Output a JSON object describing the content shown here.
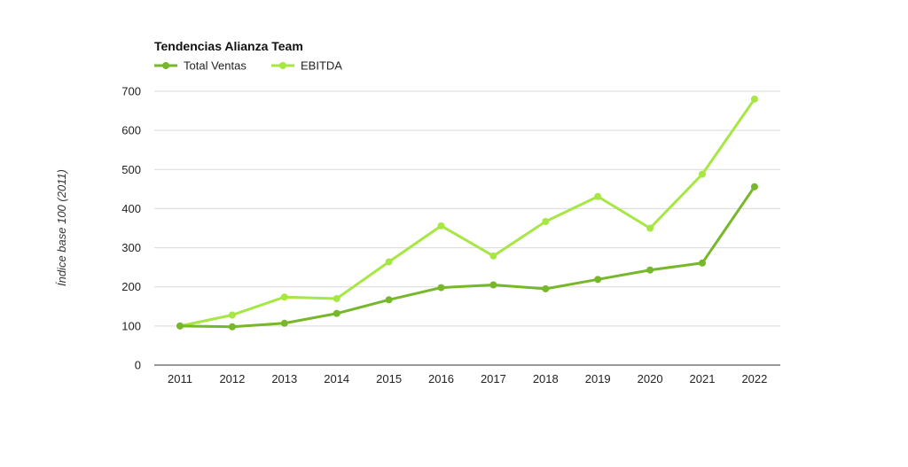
{
  "chart_data": {
    "type": "line",
    "title": "Tendencias Alianza Team",
    "xlabel": "",
    "ylabel": "Índice base 100 (2011)",
    "ylim": [
      0,
      700
    ],
    "yticks": [
      0,
      100,
      200,
      300,
      400,
      500,
      600,
      700
    ],
    "categories": [
      "2011",
      "2012",
      "2013",
      "2014",
      "2015",
      "2016",
      "2017",
      "2018",
      "2019",
      "2020",
      "2021",
      "2022"
    ],
    "series": [
      {
        "name": "Total Ventas",
        "color": "#76b82a",
        "values": [
          100,
          98,
          107,
          132,
          167,
          198,
          205,
          195,
          219,
          243,
          261,
          456
        ]
      },
      {
        "name": "EBITDA",
        "color": "#a6e744",
        "values": [
          100,
          128,
          174,
          170,
          264,
          356,
          279,
          367,
          431,
          350,
          488,
          680
        ]
      }
    ],
    "grid": true,
    "legend_position": "top-left"
  }
}
